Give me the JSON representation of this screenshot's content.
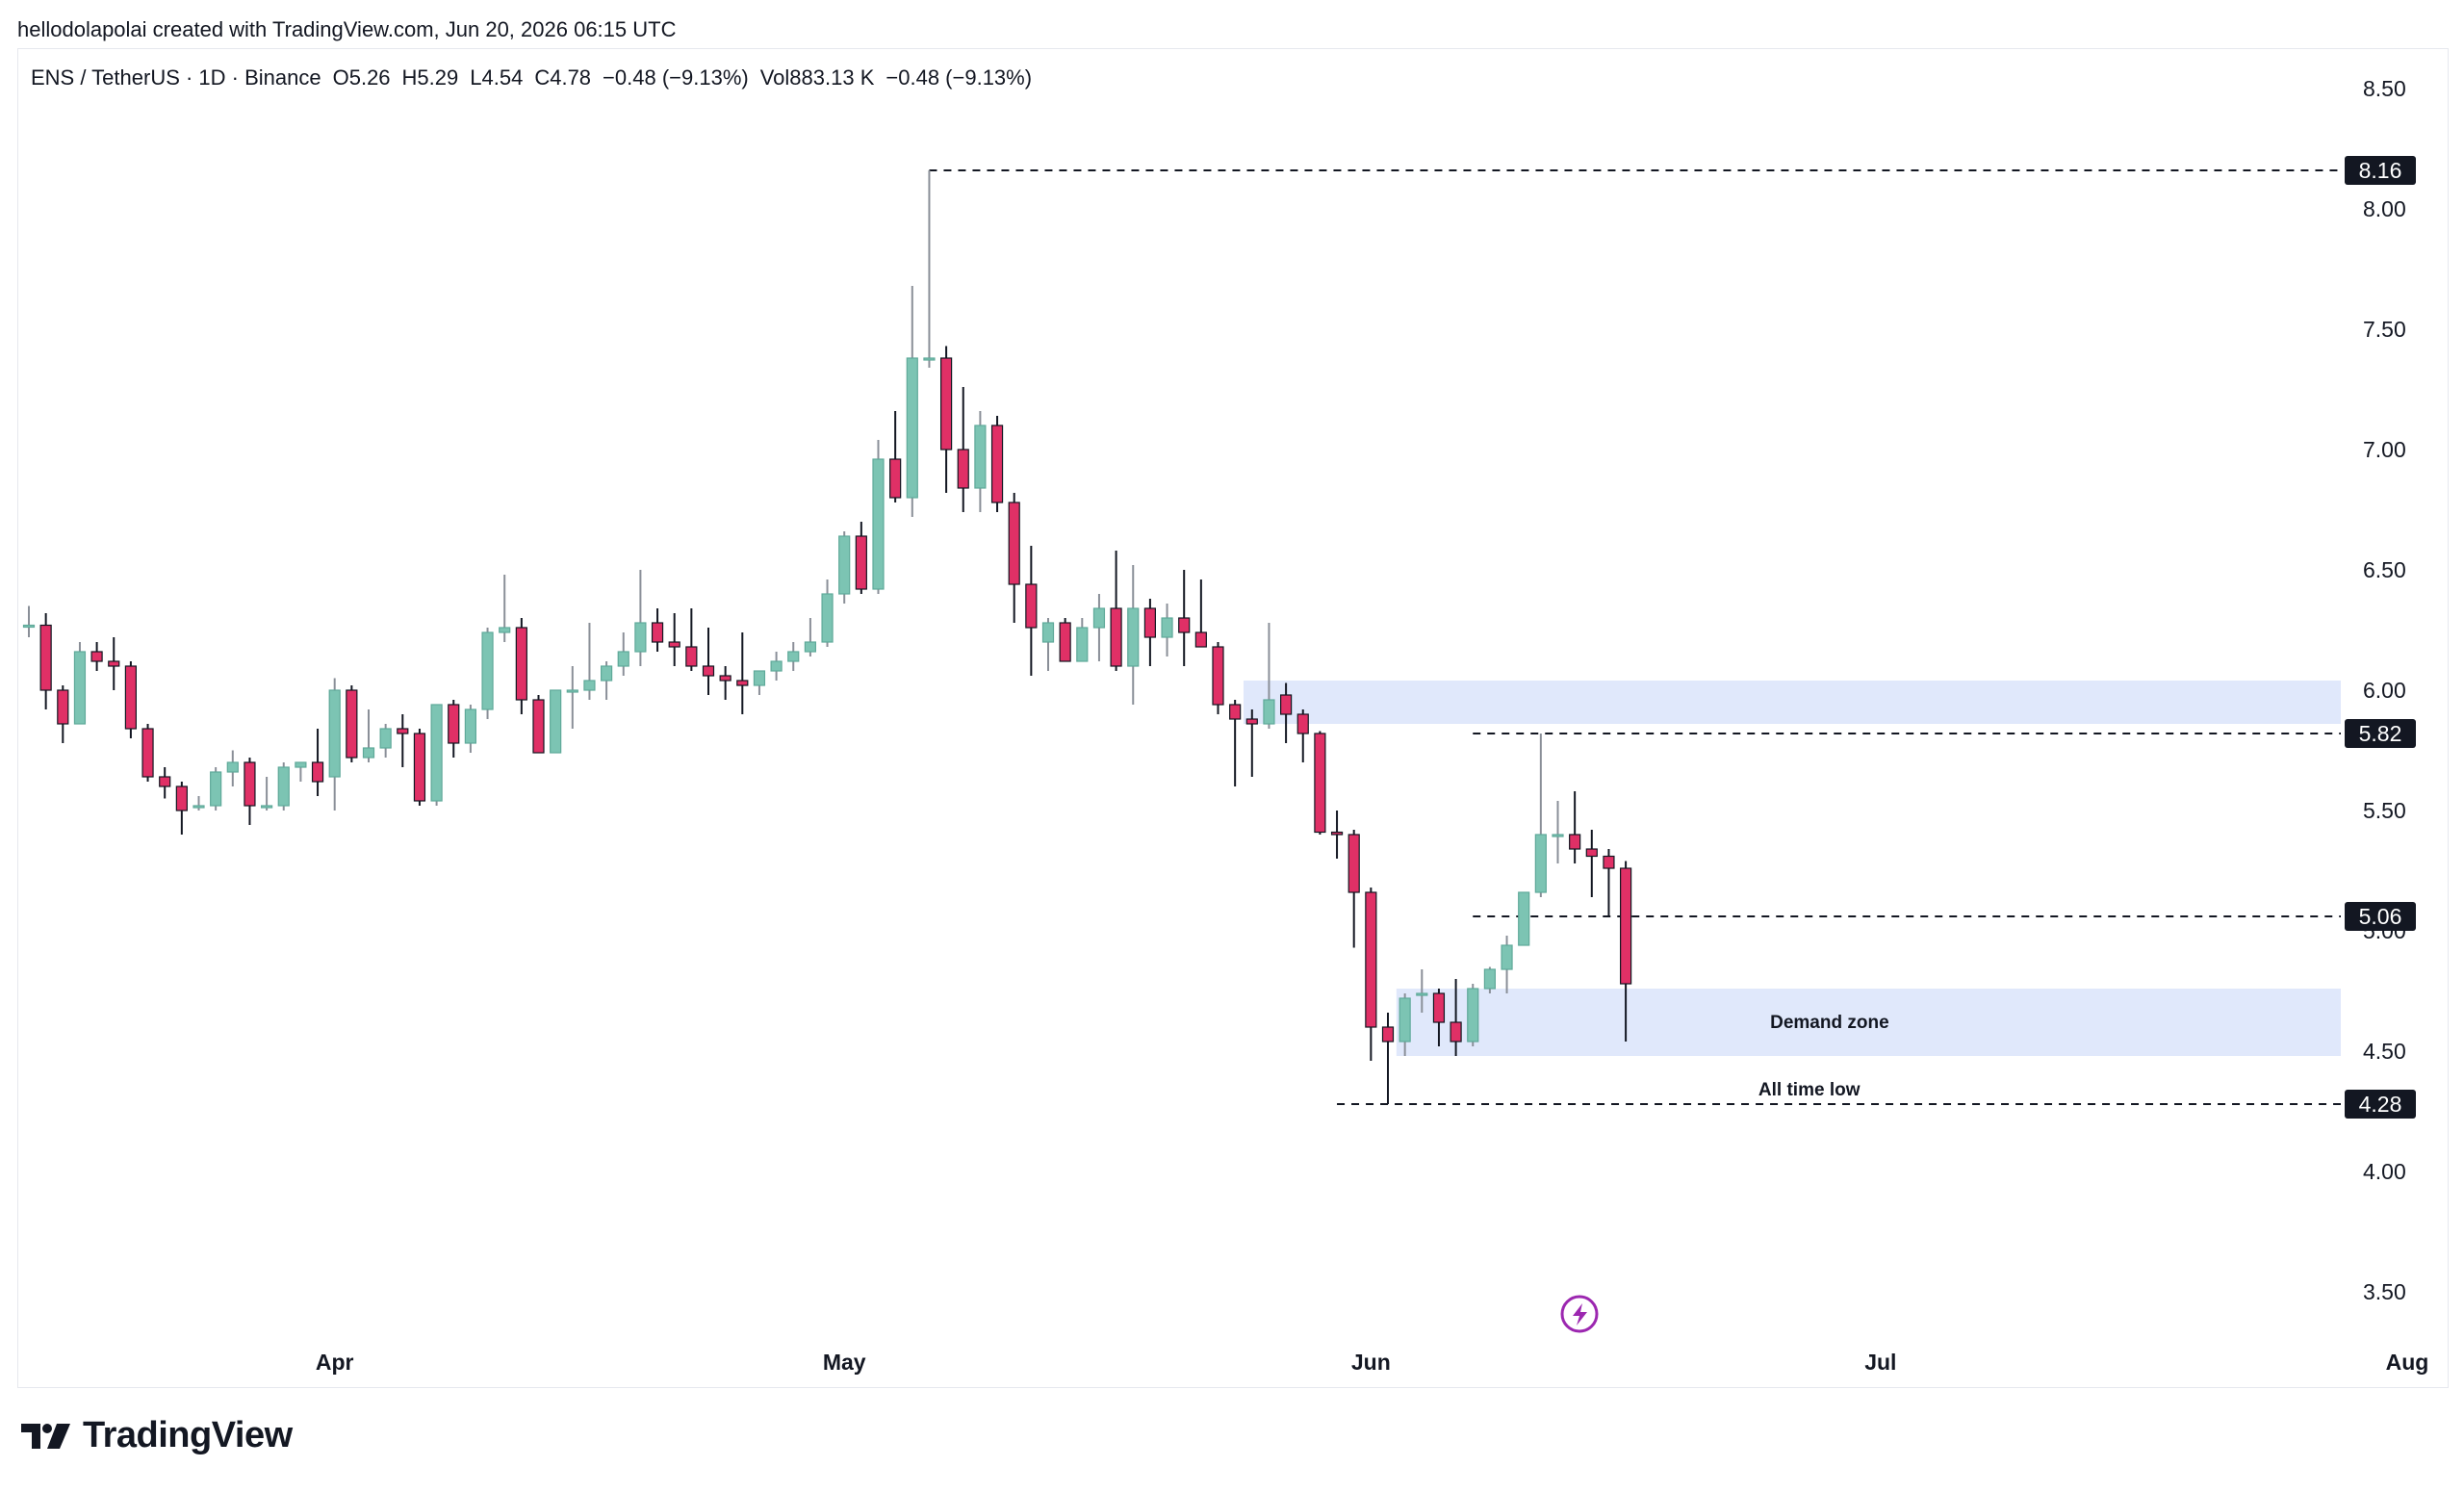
{
  "header": {
    "credit": "hellodolapolai created with TradingView.com, Jun 20, 2026 06:15 UTC"
  },
  "legend": {
    "symbol": "ENS / TetherUS · 1D · Binance",
    "open": "O5.26",
    "high": "H5.29",
    "low": "L4.54",
    "close": "C4.78",
    "change": "−0.48 (−9.13%)",
    "volume": "Vol883.13 K",
    "volume_change": "−0.48 (−9.13%)"
  },
  "brand": {
    "name": "TradingView"
  },
  "chart_data": {
    "type": "candlestick",
    "title": "ENS / TetherUS · 1D · Binance",
    "y_ticks": [
      8.5,
      8.0,
      7.5,
      7.0,
      6.5,
      6.0,
      5.5,
      5.0,
      4.5,
      4.0,
      3.5
    ],
    "y_tick_labels": [
      "8.50",
      "8.00",
      "7.50",
      "7.00",
      "6.50",
      "6.00",
      "5.50",
      "5.00",
      "4.50",
      "4.00",
      "3.50"
    ],
    "ylim": [
      3.3,
      8.65
    ],
    "x_labels": [
      {
        "label": "Apr",
        "date": "2026-04-01"
      },
      {
        "label": "May",
        "date": "2026-05-01"
      },
      {
        "label": "Jun",
        "date": "2026-06-01"
      },
      {
        "label": "Jul",
        "date": "2026-07-01"
      },
      {
        "label": "Aug",
        "date": "2026-08-01"
      }
    ],
    "first_date": "2026-03-14",
    "xlim_dates": [
      "2026-03-13",
      "2026-08-01"
    ],
    "colors": {
      "up": "#7cc4b3",
      "down": "#e03066",
      "wick_up": "#8a8f98",
      "wick_down": "#131722",
      "zone": "#e0e8fb",
      "dash": "#131722"
    },
    "candles": [
      [
        6.27,
        6.35,
        6.22,
        6.27
      ],
      [
        6.27,
        6.32,
        5.92,
        6.0
      ],
      [
        6.0,
        6.02,
        5.78,
        5.86
      ],
      [
        5.86,
        6.2,
        5.86,
        6.16
      ],
      [
        6.16,
        6.2,
        6.08,
        6.12
      ],
      [
        6.12,
        6.22,
        6.0,
        6.1
      ],
      [
        6.1,
        6.12,
        5.8,
        5.84
      ],
      [
        5.84,
        5.86,
        5.62,
        5.64
      ],
      [
        5.64,
        5.68,
        5.55,
        5.6
      ],
      [
        5.6,
        5.62,
        5.4,
        5.5
      ],
      [
        5.52,
        5.56,
        5.5,
        5.52
      ],
      [
        5.52,
        5.68,
        5.5,
        5.66
      ],
      [
        5.66,
        5.75,
        5.6,
        5.7
      ],
      [
        5.7,
        5.72,
        5.44,
        5.52
      ],
      [
        5.52,
        5.64,
        5.5,
        5.52
      ],
      [
        5.52,
        5.7,
        5.5,
        5.68
      ],
      [
        5.68,
        5.7,
        5.62,
        5.7
      ],
      [
        5.7,
        5.84,
        5.56,
        5.62
      ],
      [
        5.64,
        6.05,
        5.5,
        6.0
      ],
      [
        6.0,
        6.02,
        5.7,
        5.72
      ],
      [
        5.72,
        5.92,
        5.7,
        5.76
      ],
      [
        5.76,
        5.86,
        5.72,
        5.84
      ],
      [
        5.84,
        5.9,
        5.68,
        5.82
      ],
      [
        5.82,
        5.84,
        5.52,
        5.54
      ],
      [
        5.54,
        5.94,
        5.52,
        5.94
      ],
      [
        5.94,
        5.96,
        5.72,
        5.78
      ],
      [
        5.78,
        5.94,
        5.74,
        5.92
      ],
      [
        5.92,
        6.26,
        5.88,
        6.24
      ],
      [
        6.24,
        6.48,
        6.2,
        6.26
      ],
      [
        6.26,
        6.3,
        5.9,
        5.96
      ],
      [
        5.96,
        5.98,
        5.74,
        5.74
      ],
      [
        5.74,
        6.0,
        5.74,
        6.0
      ],
      [
        6.0,
        6.1,
        5.84,
        6.0
      ],
      [
        6.0,
        6.28,
        5.96,
        6.04
      ],
      [
        6.04,
        6.12,
        5.96,
        6.1
      ],
      [
        6.1,
        6.24,
        6.06,
        6.16
      ],
      [
        6.16,
        6.5,
        6.1,
        6.28
      ],
      [
        6.28,
        6.34,
        6.16,
        6.2
      ],
      [
        6.2,
        6.32,
        6.1,
        6.18
      ],
      [
        6.18,
        6.34,
        6.08,
        6.1
      ],
      [
        6.1,
        6.26,
        5.98,
        6.06
      ],
      [
        6.06,
        6.1,
        5.96,
        6.04
      ],
      [
        6.04,
        6.24,
        5.9,
        6.02
      ],
      [
        6.02,
        6.08,
        5.98,
        6.08
      ],
      [
        6.08,
        6.16,
        6.04,
        6.12
      ],
      [
        6.12,
        6.2,
        6.08,
        6.16
      ],
      [
        6.16,
        6.3,
        6.14,
        6.2
      ],
      [
        6.2,
        6.46,
        6.18,
        6.4
      ],
      [
        6.4,
        6.66,
        6.36,
        6.64
      ],
      [
        6.64,
        6.7,
        6.4,
        6.42
      ],
      [
        6.42,
        7.04,
        6.4,
        6.96
      ],
      [
        6.96,
        7.16,
        6.78,
        6.8
      ],
      [
        6.8,
        7.68,
        6.72,
        7.38
      ],
      [
        7.38,
        8.16,
        7.34,
        7.38
      ],
      [
        7.38,
        7.43,
        6.82,
        7.0
      ],
      [
        7.0,
        7.26,
        6.74,
        6.84
      ],
      [
        6.84,
        7.16,
        6.74,
        7.1
      ],
      [
        7.1,
        7.14,
        6.74,
        6.78
      ],
      [
        6.78,
        6.82,
        6.28,
        6.44
      ],
      [
        6.44,
        6.6,
        6.06,
        6.26
      ],
      [
        6.2,
        6.3,
        6.08,
        6.28
      ],
      [
        6.28,
        6.3,
        6.12,
        6.12
      ],
      [
        6.12,
        6.3,
        6.12,
        6.26
      ],
      [
        6.26,
        6.4,
        6.12,
        6.34
      ],
      [
        6.34,
        6.58,
        6.08,
        6.1
      ],
      [
        6.1,
        6.52,
        5.94,
        6.34
      ],
      [
        6.34,
        6.38,
        6.1,
        6.22
      ],
      [
        6.22,
        6.36,
        6.14,
        6.3
      ],
      [
        6.3,
        6.5,
        6.1,
        6.24
      ],
      [
        6.24,
        6.46,
        6.18,
        6.18
      ],
      [
        6.18,
        6.2,
        5.9,
        5.94
      ],
      [
        5.94,
        5.96,
        5.6,
        5.88
      ],
      [
        5.88,
        5.92,
        5.64,
        5.86
      ],
      [
        5.86,
        6.28,
        5.84,
        5.96
      ],
      [
        5.98,
        6.03,
        5.78,
        5.9
      ],
      [
        5.9,
        5.92,
        5.7,
        5.82
      ],
      [
        5.82,
        5.83,
        5.4,
        5.41
      ],
      [
        5.41,
        5.5,
        5.3,
        5.4
      ],
      [
        5.4,
        5.42,
        4.93,
        5.16
      ],
      [
        5.16,
        5.18,
        4.46,
        4.6
      ],
      [
        4.6,
        4.66,
        4.28,
        4.54
      ],
      [
        4.54,
        4.74,
        4.48,
        4.72
      ],
      [
        4.74,
        4.84,
        4.66,
        4.74
      ],
      [
        4.74,
        4.76,
        4.52,
        4.62
      ],
      [
        4.62,
        4.8,
        4.48,
        4.54
      ],
      [
        4.54,
        4.78,
        4.52,
        4.76
      ],
      [
        4.76,
        4.85,
        4.74,
        4.84
      ],
      [
        4.84,
        4.98,
        4.74,
        4.94
      ],
      [
        4.94,
        5.16,
        4.94,
        5.16
      ],
      [
        5.16,
        5.82,
        5.14,
        5.4
      ],
      [
        5.4,
        5.54,
        5.28,
        5.4
      ],
      [
        5.4,
        5.58,
        5.28,
        5.34
      ],
      [
        5.34,
        5.42,
        5.14,
        5.31
      ],
      [
        5.31,
        5.34,
        5.06,
        5.26
      ],
      [
        5.26,
        5.29,
        4.54,
        4.78
      ]
    ],
    "horizontal_lines": [
      {
        "value": 8.16,
        "label": "8.16",
        "from_index": 53
      },
      {
        "value": 5.82,
        "label": "5.82",
        "from_index": 85
      },
      {
        "value": 5.06,
        "label": "5.06",
        "from_index": 85
      },
      {
        "value": 4.28,
        "label": "4.28",
        "from_index": 77
      }
    ],
    "zones": [
      {
        "name": "",
        "from_index": 71.5,
        "low": 5.86,
        "high": 6.04
      },
      {
        "name": "Demand zone",
        "from_index": 80.5,
        "low": 4.48,
        "high": 4.76
      }
    ],
    "annotations": [
      {
        "text": "Demand zone",
        "index": 106,
        "value": 4.62
      },
      {
        "text": "All time low",
        "index": 104.8,
        "value": 4.34
      }
    ]
  }
}
